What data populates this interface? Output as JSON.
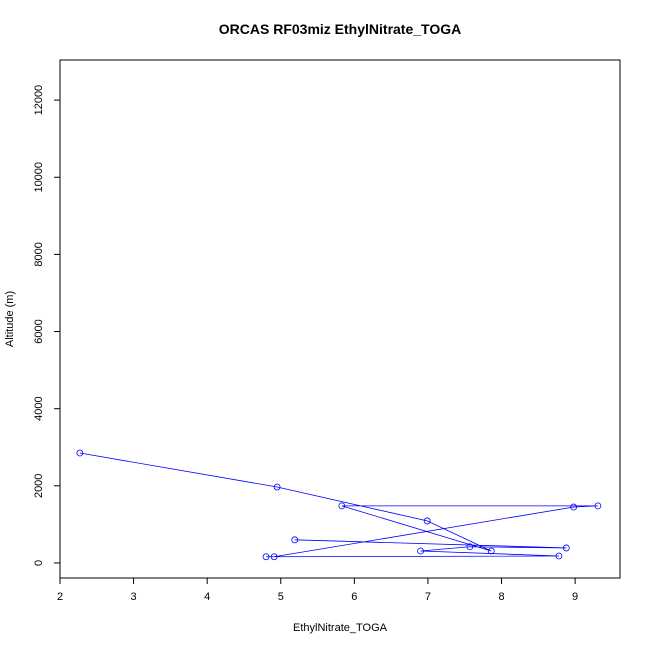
{
  "chart_data": {
    "type": "line",
    "title": "ORCAS RF03miz EthylNitrate_TOGA",
    "x_label": "EthylNitrate_TOGA",
    "y_label": "Altitude (m)",
    "series": [
      {
        "color": "#0000ff",
        "x": [
          2.27,
          4.95,
          6.99,
          7.86,
          5.83,
          9.31,
          8.98,
          4.91,
          4.8,
          8.78,
          6.9,
          7.57,
          8.88,
          5.19
        ],
        "values": [
          2850,
          1970,
          1090,
          310,
          1480,
          1480,
          1450,
          160,
          160,
          180,
          310,
          420,
          390,
          600
        ]
      }
    ],
    "xlim": [
      2,
      9.61
    ],
    "ylim": [
      -390,
      13040
    ],
    "xticks": [
      2,
      3,
      4,
      5,
      6,
      7,
      8,
      9
    ],
    "yticks": [
      0,
      2000,
      4000,
      6000,
      8000,
      10000,
      12000
    ]
  }
}
